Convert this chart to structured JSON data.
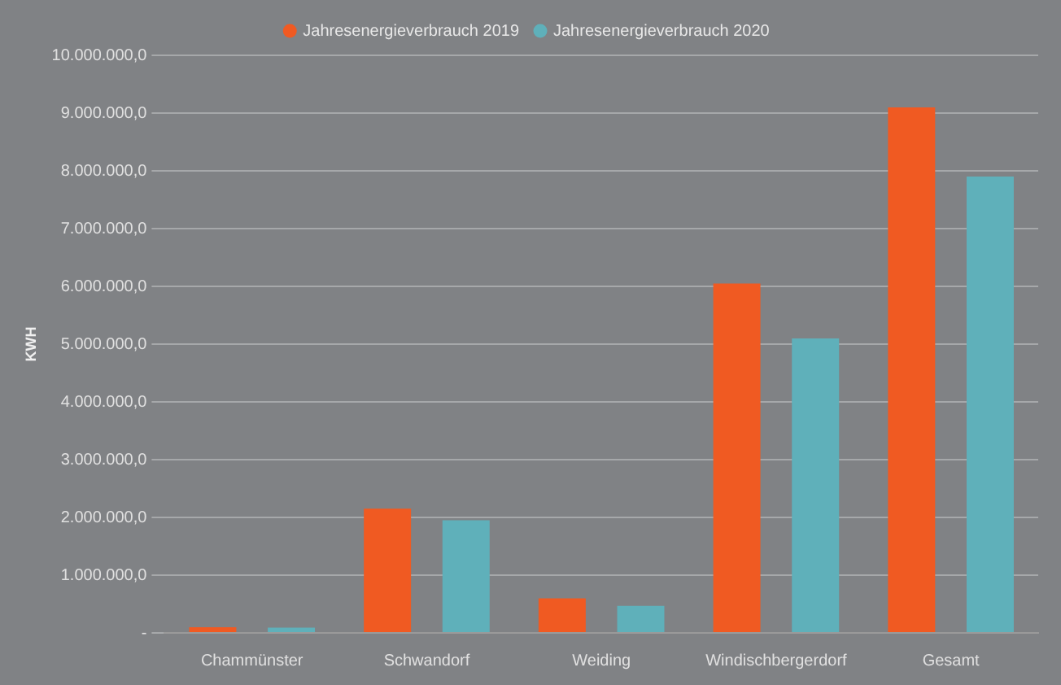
{
  "chart_data": {
    "type": "bar",
    "ylabel": "KWH",
    "categories": [
      "Chammünster",
      "Schwandorf",
      "Weiding",
      "Windischbergerdorf",
      "Gesamt"
    ],
    "series": [
      {
        "name": "Jahresenergieverbrauch 2019",
        "color": "#f05a22",
        "values": [
          100000,
          2150000,
          600000,
          6050000,
          9100000
        ]
      },
      {
        "name": "Jahresenergieverbrauch 2020",
        "color": "#5fb0ba",
        "values": [
          90000,
          1950000,
          470000,
          5100000,
          7900000
        ]
      }
    ],
    "ylim": [
      0,
      10000000
    ],
    "yticks": [
      {
        "value": 0,
        "label": "-"
      },
      {
        "value": 1000000,
        "label": "1.000.000,0"
      },
      {
        "value": 2000000,
        "label": "2.000.000,0"
      },
      {
        "value": 3000000,
        "label": "3.000.000,0"
      },
      {
        "value": 4000000,
        "label": "4.000.000,0"
      },
      {
        "value": 5000000,
        "label": "5.000.000,0"
      },
      {
        "value": 6000000,
        "label": "6.000.000,0"
      },
      {
        "value": 7000000,
        "label": "7.000.000,0"
      },
      {
        "value": 8000000,
        "label": "8.000.000,0"
      },
      {
        "value": 9000000,
        "label": "9.000.000,0"
      },
      {
        "value": 10000000,
        "label": "10.000.000,0"
      }
    ],
    "grid": "y",
    "legend": "top"
  }
}
